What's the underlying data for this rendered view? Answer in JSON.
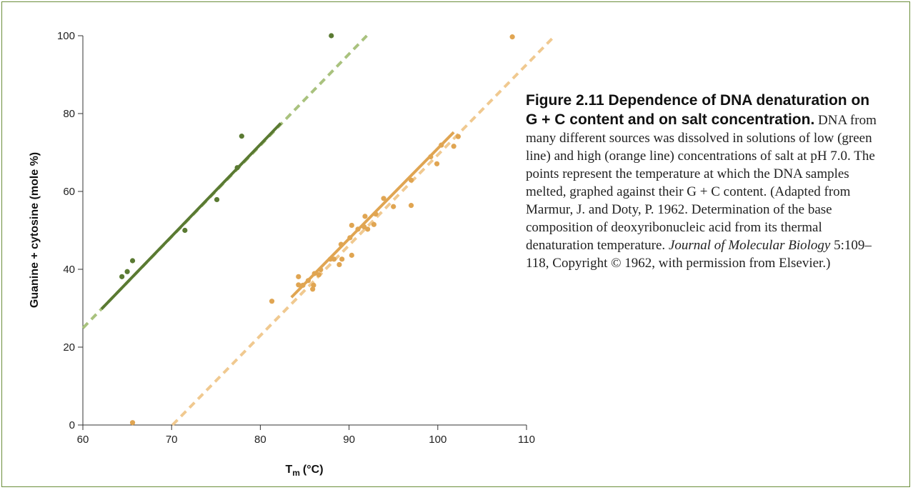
{
  "chart_data": {
    "type": "scatter",
    "xlabel": "T",
    "xlabel_subscript": "m",
    "xlabel_unit": "(°C)",
    "ylabel": "Guanine + cytosine (mole %)",
    "xlim": [
      60,
      110
    ],
    "ylim": [
      0,
      100
    ],
    "xticks": [
      60,
      70,
      80,
      90,
      100,
      110
    ],
    "yticks": [
      0,
      20,
      40,
      60,
      80,
      100
    ],
    "grid": false,
    "series": [
      {
        "color": "#5a7a32",
        "dash_color": "#a9c27e",
        "points": [
          [
            88,
            100
          ],
          [
            77.9,
            74.2
          ],
          [
            77.4,
            66.1
          ],
          [
            75.1,
            57.9
          ],
          [
            71.5,
            50.0
          ],
          [
            65.6,
            42.2
          ],
          [
            65.0,
            39.4
          ],
          [
            64.4,
            38.1
          ]
        ],
        "fit_solid": [
          [
            62.1,
            29.8
          ],
          [
            82.3,
            77.5
          ]
        ],
        "fit_dashed": [
          [
            60,
            24.9
          ],
          [
            92.0,
            100
          ]
        ]
      },
      {
        "color": "#e0a552",
        "dash_color": "#f0c990",
        "points": [
          [
            108.4,
            99.7
          ],
          [
            65.6,
            0.6
          ],
          [
            81.3,
            31.8
          ],
          [
            84.3,
            38.1
          ],
          [
            84.3,
            36.0
          ],
          [
            84.8,
            35.9
          ],
          [
            85.4,
            37.1
          ],
          [
            86.0,
            35.9
          ],
          [
            85.9,
            34.9
          ],
          [
            86.1,
            38.9
          ],
          [
            86.6,
            38.6
          ],
          [
            86.8,
            39.9
          ],
          [
            87.9,
            42.6
          ],
          [
            88.3,
            42.6
          ],
          [
            88.9,
            41.2
          ],
          [
            89.2,
            42.6
          ],
          [
            89.1,
            46.4
          ],
          [
            90.1,
            48.1
          ],
          [
            90.3,
            43.6
          ],
          [
            90.3,
            51.3
          ],
          [
            91.0,
            50.3
          ],
          [
            91.7,
            50.9
          ],
          [
            91.8,
            53.6
          ],
          [
            92.1,
            50.3
          ],
          [
            92.8,
            51.5
          ],
          [
            93.0,
            54.2
          ],
          [
            93.9,
            58.2
          ],
          [
            95.0,
            56.1
          ],
          [
            97.0,
            62.9
          ],
          [
            97.0,
            56.4
          ],
          [
            99.2,
            68.9
          ],
          [
            99.9,
            67.1
          ],
          [
            100.4,
            71.9
          ],
          [
            101.8,
            71.6
          ],
          [
            102.3,
            74.1
          ]
        ],
        "fit_solid": [
          [
            83.5,
            32.8
          ],
          [
            101.8,
            75.2
          ]
        ],
        "fit_dashed": [
          [
            70.1,
            0
          ],
          [
            113.2,
            100
          ]
        ]
      }
    ]
  },
  "caption": {
    "title": "Figure 2.11 Dependence of DNA denaturation on G + C content and on salt concentration.",
    "body": " DNA from many different sources was dissolved in solutions of low (green line) and high (orange line) concentrations of salt at pH 7.0. The points represent the temperature at which the DNA samples melted, graphed against their G + C content. (Adapted from Marmur, J. and Doty, P. 1962. Determination of the base composition of deoxyribonucleic acid from its thermal denaturation temperature. ",
    "journal": "Journal of Molecular Biology",
    "tail": " 5:109–118, Copyright © 1962, with permission from Elsevier.)"
  }
}
